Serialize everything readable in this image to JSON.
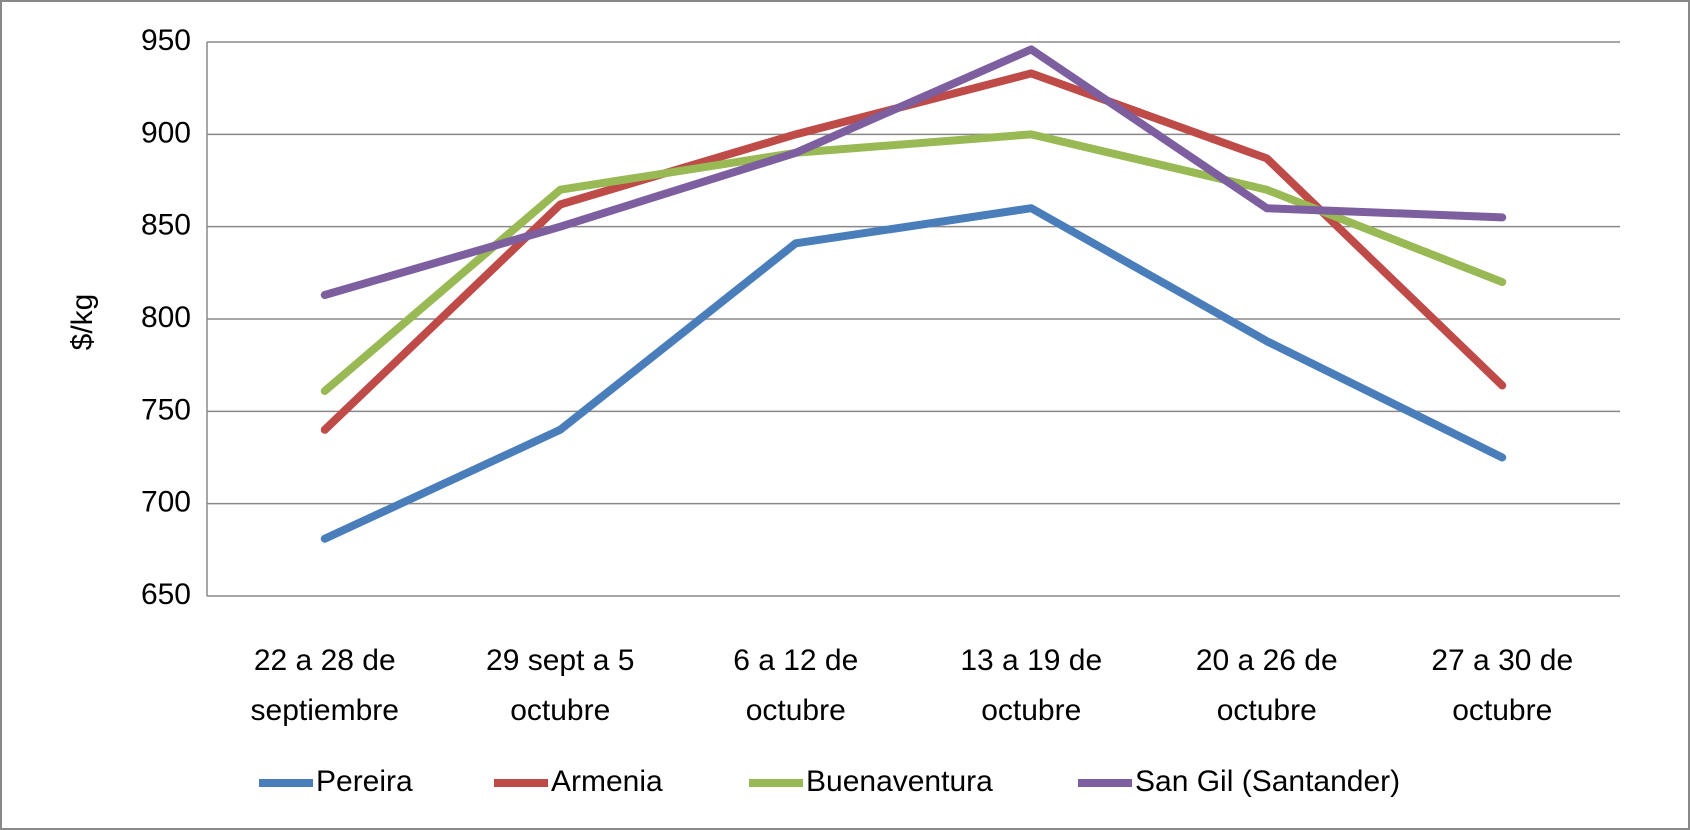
{
  "chart_data": {
    "type": "line",
    "y_label": "$/kg",
    "categories": [
      [
        "22 a 28 de",
        "septiembre"
      ],
      [
        "29 sept  a  5",
        "octubre"
      ],
      [
        "6 a 12 de",
        "octubre"
      ],
      [
        "13 a 19 de",
        "octubre"
      ],
      [
        "20 a 26 de",
        "octubre"
      ],
      [
        "27 a 30 de",
        "octubre"
      ]
    ],
    "series": [
      {
        "name": "Pereira",
        "color": "#4a7ebb",
        "values": [
          681,
          740,
          841,
          860,
          788,
          725
        ]
      },
      {
        "name": "Armenia",
        "color": "#be4b48",
        "values": [
          740,
          862,
          900,
          933,
          887,
          764
        ]
      },
      {
        "name": "Buenaventura",
        "color": "#98b954",
        "values": [
          761,
          870,
          890,
          900,
          870,
          820
        ]
      },
      {
        "name": "San Gil (Santander)",
        "color": "#7d5fa0",
        "values": [
          813,
          850,
          890,
          946,
          860,
          855
        ]
      }
    ],
    "ylim": [
      650,
      950
    ],
    "yticks": [
      650,
      700,
      750,
      800,
      850,
      900,
      950
    ],
    "grid": true,
    "legend": "bottom"
  }
}
